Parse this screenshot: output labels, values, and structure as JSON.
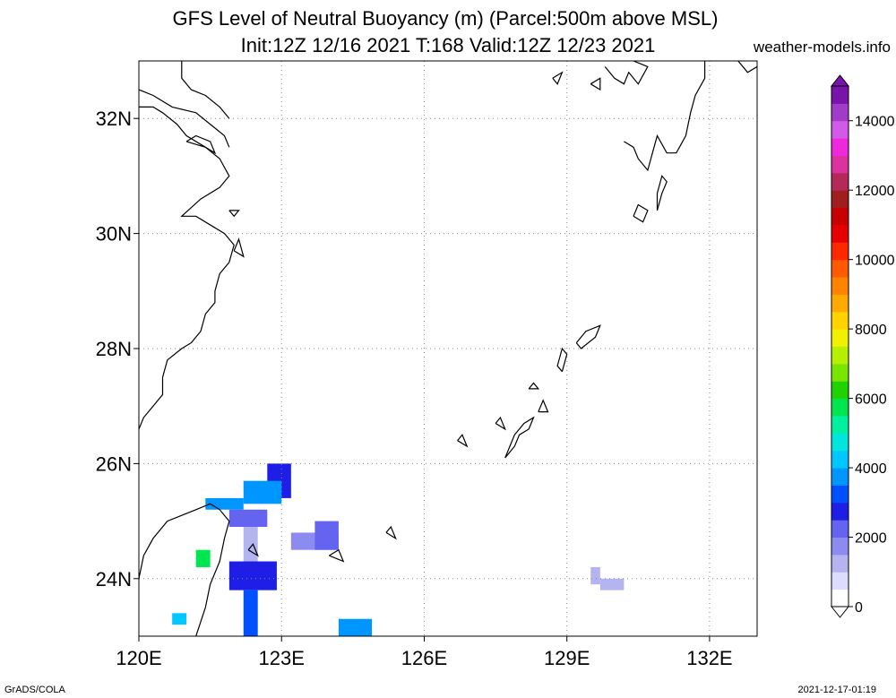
{
  "header": {
    "title_line1": "GFS Level of Neutral Buoyancy (m) (Parcel:500m above MSL)",
    "title_line2": "Init:12Z 12/16 2021 T:168 Valid:12Z 12/23 2021",
    "credit": "weather-models.info"
  },
  "footer": {
    "software": "GrADS/COLA",
    "timestamp": "2021-12-17-01:19"
  },
  "map": {
    "lon_range": [
      120,
      133
    ],
    "lat_range": [
      23,
      33
    ],
    "lon_labels": [
      {
        "lon": 120,
        "label": "120E"
      },
      {
        "lon": 123,
        "label": "123E"
      },
      {
        "lon": 126,
        "label": "126E"
      },
      {
        "lon": 129,
        "label": "129E"
      },
      {
        "lon": 132,
        "label": "132E"
      }
    ],
    "lat_labels": [
      {
        "lat": 24,
        "label": "24N"
      },
      {
        "lat": 26,
        "label": "26N"
      },
      {
        "lat": 28,
        "label": "28N"
      },
      {
        "lat": 30,
        "label": "30N"
      },
      {
        "lat": 32,
        "label": "32N"
      }
    ],
    "gridlines": "dotted",
    "colorbar_ticks": [
      "0",
      "2000",
      "4000",
      "6000",
      "8000",
      "10000",
      "12000",
      "14000"
    ],
    "colorbar_max": 15000,
    "colorbar_colors": [
      "#ffffff",
      "#dcdcff",
      "#b4b4f0",
      "#8c8cf0",
      "#6464f0",
      "#1e1ee6",
      "#0050ff",
      "#0096ff",
      "#00c8ff",
      "#00e6dc",
      "#00f0a0",
      "#00e650",
      "#20d200",
      "#78e600",
      "#b4f000",
      "#f0f000",
      "#ffd200",
      "#ffaa00",
      "#ff8200",
      "#ff5a00",
      "#ff2800",
      "#e60000",
      "#c80000",
      "#a01e1e",
      "#b4285a",
      "#dc32a0",
      "#f028dc",
      "#d25ae6",
      "#a03cc8",
      "#7814aa"
    ],
    "field_cells": [
      {
        "lon0": 122.7,
        "lat0": 25.4,
        "lon1": 123.2,
        "lat1": 26.0,
        "value": 2600
      },
      {
        "lon0": 122.2,
        "lat0": 25.3,
        "lon1": 123.0,
        "lat1": 25.7,
        "value": 3900
      },
      {
        "lon0": 121.4,
        "lat0": 25.2,
        "lon1": 122.2,
        "lat1": 25.4,
        "value": 3900
      },
      {
        "lon0": 121.9,
        "lat0": 24.9,
        "lon1": 122.7,
        "lat1": 25.2,
        "value": 2300
      },
      {
        "lon0": 122.2,
        "lat0": 24.0,
        "lon1": 122.5,
        "lat1": 24.9,
        "value": 1400
      },
      {
        "lon0": 121.9,
        "lat0": 23.8,
        "lon1": 122.9,
        "lat1": 24.3,
        "value": 2600
      },
      {
        "lon0": 122.2,
        "lat0": 23.0,
        "lon1": 122.5,
        "lat1": 23.8,
        "value": 3200
      },
      {
        "lon0": 123.2,
        "lat0": 24.5,
        "lon1": 124.2,
        "lat1": 24.8,
        "value": 1500
      },
      {
        "lon0": 123.7,
        "lat0": 24.5,
        "lon1": 124.2,
        "lat1": 25.0,
        "value": 2000
      },
      {
        "lon0": 124.2,
        "lat0": 23.0,
        "lon1": 124.9,
        "lat1": 23.3,
        "value": 3700
      },
      {
        "lon0": 121.2,
        "lat0": 24.2,
        "lon1": 121.5,
        "lat1": 24.5,
        "value": 5500
      },
      {
        "lon0": 120.7,
        "lat0": 23.2,
        "lon1": 121.0,
        "lat1": 23.4,
        "value": 4200
      },
      {
        "lon0": 129.5,
        "lat0": 23.9,
        "lon1": 129.7,
        "lat1": 24.2,
        "value": 1200
      },
      {
        "lon0": 129.7,
        "lat0": 23.8,
        "lon1": 130.2,
        "lat1": 24.0,
        "value": 1100
      }
    ],
    "coastlines": [
      [
        [
          120.0,
          26.6
        ],
        [
          120.1,
          26.8
        ],
        [
          120.3,
          27.0
        ],
        [
          120.5,
          27.2
        ],
        [
          120.5,
          27.5
        ],
        [
          120.6,
          27.8
        ],
        [
          120.9,
          28.0
        ],
        [
          121.1,
          28.1
        ],
        [
          121.3,
          28.3
        ],
        [
          121.4,
          28.6
        ],
        [
          121.6,
          28.8
        ],
        [
          121.6,
          29.0
        ],
        [
          121.7,
          29.3
        ],
        [
          121.9,
          29.5
        ],
        [
          122.0,
          29.8
        ],
        [
          121.8,
          30.0
        ],
        [
          121.6,
          30.1
        ],
        [
          121.2,
          30.3
        ],
        [
          120.9,
          30.3
        ],
        [
          121.3,
          30.6
        ],
        [
          121.7,
          30.8
        ],
        [
          121.9,
          31.0
        ],
        [
          121.7,
          31.3
        ],
        [
          121.4,
          31.5
        ],
        [
          121.0,
          31.7
        ],
        [
          120.8,
          31.9
        ],
        [
          120.5,
          32.1
        ],
        [
          120.3,
          32.2
        ],
        [
          120.0,
          32.2
        ]
      ],
      [
        [
          120.0,
          32.5
        ],
        [
          120.3,
          32.4
        ],
        [
          120.7,
          32.2
        ],
        [
          121.2,
          32.1
        ],
        [
          121.5,
          31.9
        ],
        [
          121.8,
          31.7
        ],
        [
          121.9,
          31.5
        ]
      ],
      [
        [
          120.9,
          33.0
        ],
        [
          120.9,
          32.7
        ],
        [
          121.1,
          32.5
        ],
        [
          121.4,
          32.4
        ],
        [
          121.7,
          32.2
        ],
        [
          121.9,
          32.0
        ]
      ],
      [
        [
          121.0,
          31.6
        ],
        [
          121.4,
          31.5
        ],
        [
          121.6,
          31.4
        ],
        [
          121.5,
          31.6
        ],
        [
          121.2,
          31.7
        ],
        [
          121.0,
          31.6
        ]
      ],
      [
        [
          120.0,
          24.0
        ],
        [
          120.1,
          24.4
        ],
        [
          120.3,
          24.7
        ],
        [
          120.6,
          25.0
        ],
        [
          120.9,
          25.1
        ],
        [
          121.2,
          25.2
        ],
        [
          121.5,
          25.3
        ],
        [
          121.7,
          25.2
        ],
        [
          121.9,
          25.0
        ],
        [
          121.8,
          24.7
        ],
        [
          121.7,
          24.3
        ],
        [
          121.5,
          23.9
        ],
        [
          121.4,
          23.5
        ],
        [
          121.2,
          23.0
        ]
      ],
      [
        [
          122.3,
          24.5
        ],
        [
          122.5,
          24.4
        ],
        [
          122.4,
          24.6
        ],
        [
          122.3,
          24.5
        ]
      ],
      [
        [
          124.0,
          24.4
        ],
        [
          124.3,
          24.3
        ],
        [
          124.2,
          24.5
        ],
        [
          124.0,
          24.4
        ]
      ],
      [
        [
          125.2,
          24.8
        ],
        [
          125.4,
          24.7
        ],
        [
          125.3,
          24.9
        ],
        [
          125.2,
          24.8
        ]
      ],
      [
        [
          126.7,
          26.4
        ],
        [
          126.9,
          26.3
        ],
        [
          126.8,
          26.5
        ],
        [
          126.7,
          26.4
        ]
      ],
      [
        [
          127.7,
          26.1
        ],
        [
          127.9,
          26.3
        ],
        [
          128.0,
          26.5
        ],
        [
          128.2,
          26.6
        ],
        [
          128.3,
          26.8
        ],
        [
          128.1,
          26.7
        ],
        [
          127.9,
          26.5
        ],
        [
          127.8,
          26.3
        ],
        [
          127.7,
          26.1
        ]
      ],
      [
        [
          127.5,
          26.7
        ],
        [
          127.7,
          26.6
        ],
        [
          127.6,
          26.8
        ],
        [
          127.5,
          26.7
        ]
      ],
      [
        [
          128.4,
          26.9
        ],
        [
          128.6,
          26.9
        ],
        [
          128.5,
          27.1
        ],
        [
          128.4,
          26.9
        ]
      ],
      [
        [
          128.9,
          27.6
        ],
        [
          129.0,
          27.9
        ],
        [
          128.9,
          28.0
        ],
        [
          128.8,
          27.7
        ],
        [
          128.9,
          27.6
        ]
      ],
      [
        [
          128.2,
          27.3
        ],
        [
          128.4,
          27.3
        ],
        [
          128.3,
          27.4
        ],
        [
          128.2,
          27.3
        ]
      ],
      [
        [
          129.2,
          28.1
        ],
        [
          129.4,
          28.3
        ],
        [
          129.7,
          28.4
        ],
        [
          129.6,
          28.2
        ],
        [
          129.3,
          28.0
        ],
        [
          129.2,
          28.1
        ]
      ],
      [
        [
          130.4,
          30.3
        ],
        [
          130.6,
          30.2
        ],
        [
          130.7,
          30.4
        ],
        [
          130.5,
          30.5
        ],
        [
          130.4,
          30.3
        ]
      ],
      [
        [
          130.9,
          30.4
        ],
        [
          131.0,
          30.7
        ],
        [
          131.1,
          30.9
        ],
        [
          131.0,
          31.0
        ],
        [
          130.9,
          30.7
        ],
        [
          130.9,
          30.4
        ]
      ],
      [
        [
          130.2,
          31.6
        ],
        [
          130.4,
          31.5
        ],
        [
          130.5,
          31.3
        ],
        [
          130.7,
          31.1
        ],
        [
          130.8,
          31.4
        ],
        [
          130.9,
          31.7
        ],
        [
          131.1,
          31.4
        ],
        [
          131.3,
          31.4
        ],
        [
          131.5,
          31.7
        ],
        [
          131.6,
          32.1
        ],
        [
          131.7,
          32.4
        ],
        [
          131.9,
          32.7
        ],
        [
          131.9,
          33.0
        ]
      ],
      [
        [
          129.8,
          32.9
        ],
        [
          130.0,
          32.7
        ],
        [
          130.2,
          32.6
        ],
        [
          130.3,
          32.8
        ],
        [
          130.5,
          32.6
        ],
        [
          130.7,
          32.9
        ],
        [
          130.4,
          33.0
        ]
      ],
      [
        [
          129.5,
          32.6
        ],
        [
          129.7,
          32.5
        ],
        [
          129.7,
          32.7
        ],
        [
          129.5,
          32.6
        ]
      ],
      [
        [
          132.6,
          33.0
        ],
        [
          132.8,
          32.8
        ],
        [
          133.0,
          32.9
        ]
      ],
      [
        [
          128.7,
          32.7
        ],
        [
          128.9,
          32.8
        ],
        [
          128.8,
          32.6
        ],
        [
          128.7,
          32.7
        ]
      ],
      [
        [
          122.0,
          29.7
        ],
        [
          122.2,
          29.6
        ],
        [
          122.1,
          29.9
        ],
        [
          122.0,
          29.7
        ]
      ],
      [
        [
          121.9,
          30.4
        ],
        [
          122.1,
          30.4
        ],
        [
          122.0,
          30.3
        ],
        [
          121.9,
          30.4
        ]
      ]
    ]
  }
}
